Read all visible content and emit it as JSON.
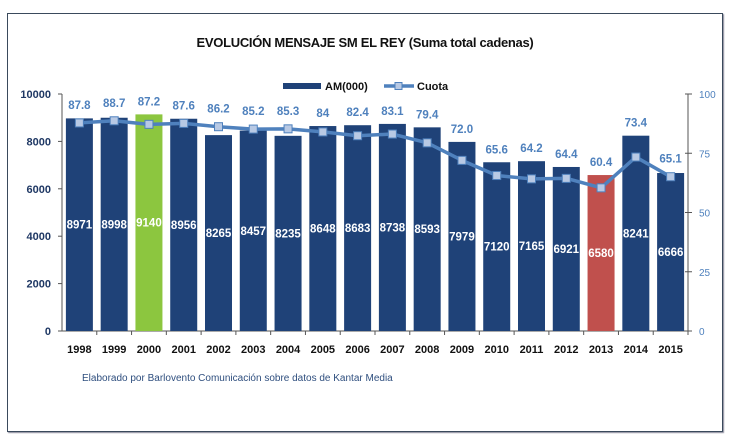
{
  "chart_data": {
    "type": "bar+line",
    "title": "EVOLUCIÓN MENSAJE SM EL REY (Suma total cadenas)",
    "categories": [
      "1998",
      "1999",
      "2000",
      "2001",
      "2002",
      "2003",
      "2004",
      "2005",
      "2006",
      "2007",
      "2008",
      "2009",
      "2010",
      "2011",
      "2012",
      "2013",
      "2014",
      "2015"
    ],
    "series": [
      {
        "name": "AM(000)",
        "type": "bar",
        "axis": "left",
        "values": [
          8971,
          8998,
          9140,
          8956,
          8265,
          8457,
          8235,
          8648,
          8683,
          8738,
          8593,
          7979,
          7120,
          7165,
          6921,
          6580,
          8241,
          6666
        ],
        "labels": [
          "8971",
          "8998",
          "9140",
          "8956",
          "8265",
          "8457",
          "8235",
          "8648",
          "8683",
          "8738",
          "8593",
          "7979",
          "7120",
          "7165",
          "6921",
          "6580",
          "8241",
          "6666"
        ]
      },
      {
        "name": "Cuota",
        "type": "line",
        "axis": "right",
        "values": [
          87.8,
          88.7,
          87.2,
          87.6,
          86.2,
          85.2,
          85.3,
          84,
          82.4,
          83.1,
          79.4,
          72.0,
          65.6,
          64.2,
          64.4,
          60.4,
          73.4,
          65.1
        ],
        "labels": [
          "87.8",
          "88.7",
          "87.2",
          "87.6",
          "86.2",
          "85.2",
          "85.3",
          "84",
          "82.4",
          "83.1",
          "79.4",
          "72.0",
          "65.6",
          "64.2",
          "64.4",
          "60.4",
          "73.4",
          "65.1"
        ]
      }
    ],
    "y_left": {
      "range": [
        0,
        10000
      ],
      "ticks": [
        "0",
        "2000",
        "4000",
        "6000",
        "8000",
        "10000"
      ]
    },
    "y_right": {
      "range": [
        0,
        100
      ],
      "ticks": [
        "0",
        "25",
        "50",
        "75",
        "100"
      ]
    },
    "legend": "top-center",
    "grid": false,
    "colors": {
      "bar": "#1f4278",
      "highlight_2000": "#8cc63f",
      "highlight_2013": "#c0504d",
      "line": "#4f81bd",
      "marker": "#b8c9e4",
      "label": "#4f81bd"
    }
  },
  "footer": "Elaborado por Barlovento Comunicación sobre datos de Kantar Media"
}
